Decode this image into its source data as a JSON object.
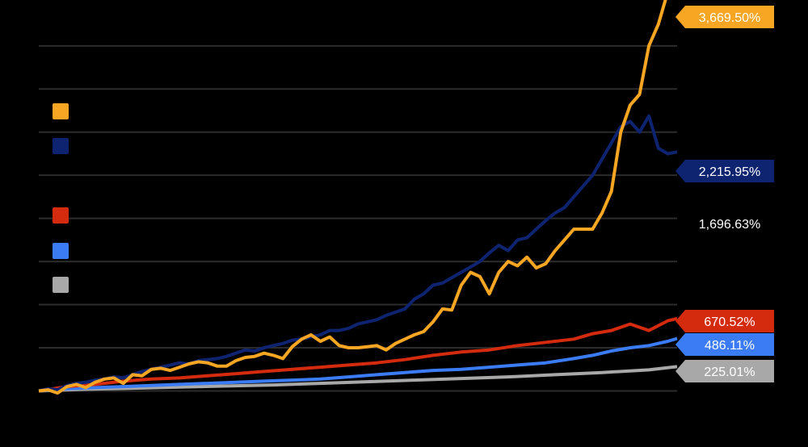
{
  "chart_data": {
    "type": "line",
    "title": "",
    "xlabel": "",
    "ylabel": "",
    "grid": true,
    "legend_position": "left",
    "ylim": [
      -700,
      3700
    ],
    "gridlines": [
      -700,
      0,
      400,
      800,
      1200,
      1600,
      2000,
      2400,
      2800,
      3200
    ],
    "series": [
      {
        "color": "#f6a623",
        "end_label": "3,669.50%",
        "values": [
          [
            0,
            0
          ],
          [
            2,
            10
          ],
          [
            4,
            -20
          ],
          [
            6,
            40
          ],
          [
            8,
            60
          ],
          [
            10,
            30
          ],
          [
            12,
            80
          ],
          [
            14,
            110
          ],
          [
            16,
            120
          ],
          [
            18,
            70
          ],
          [
            20,
            150
          ],
          [
            22,
            140
          ],
          [
            24,
            200
          ],
          [
            26,
            210
          ],
          [
            28,
            190
          ],
          [
            30,
            220
          ],
          [
            32,
            250
          ],
          [
            34,
            270
          ],
          [
            36,
            260
          ],
          [
            38,
            230
          ],
          [
            40,
            230
          ],
          [
            42,
            280
          ],
          [
            44,
            310
          ],
          [
            46,
            320
          ],
          [
            48,
            350
          ],
          [
            50,
            330
          ],
          [
            52,
            300
          ],
          [
            54,
            410
          ],
          [
            56,
            480
          ],
          [
            58,
            520
          ],
          [
            60,
            460
          ],
          [
            62,
            500
          ],
          [
            64,
            420
          ],
          [
            66,
            400
          ],
          [
            68,
            400
          ],
          [
            70,
            410
          ],
          [
            72,
            420
          ],
          [
            74,
            380
          ],
          [
            76,
            440
          ],
          [
            78,
            480
          ],
          [
            80,
            520
          ],
          [
            82,
            550
          ],
          [
            84,
            640
          ],
          [
            86,
            760
          ],
          [
            88,
            750
          ],
          [
            90,
            980
          ],
          [
            92,
            1100
          ],
          [
            94,
            1060
          ],
          [
            96,
            900
          ],
          [
            98,
            1100
          ],
          [
            100,
            1200
          ],
          [
            102,
            1160
          ],
          [
            104,
            1240
          ],
          [
            106,
            1140
          ],
          [
            108,
            1180
          ],
          [
            110,
            1300
          ],
          [
            112,
            1400
          ],
          [
            114,
            1500
          ],
          [
            116,
            1500
          ],
          [
            118,
            1500
          ],
          [
            120,
            1650
          ],
          [
            122,
            1850
          ],
          [
            124,
            2400
          ],
          [
            126,
            2650
          ],
          [
            128,
            2750
          ],
          [
            130,
            3200
          ],
          [
            132,
            3400
          ],
          [
            134,
            3700
          ],
          [
            136,
            3669.5
          ]
        ]
      },
      {
        "color": "#0f2470",
        "end_label": "2,215.95%",
        "values": [
          [
            0,
            0
          ],
          [
            2,
            20
          ],
          [
            4,
            10
          ],
          [
            6,
            50
          ],
          [
            8,
            70
          ],
          [
            10,
            80
          ],
          [
            12,
            100
          ],
          [
            14,
            110
          ],
          [
            16,
            130
          ],
          [
            18,
            120
          ],
          [
            20,
            150
          ],
          [
            22,
            180
          ],
          [
            24,
            200
          ],
          [
            26,
            220
          ],
          [
            28,
            240
          ],
          [
            30,
            260
          ],
          [
            32,
            250
          ],
          [
            34,
            280
          ],
          [
            36,
            290
          ],
          [
            38,
            300
          ],
          [
            40,
            320
          ],
          [
            42,
            350
          ],
          [
            44,
            380
          ],
          [
            46,
            370
          ],
          [
            48,
            400
          ],
          [
            50,
            420
          ],
          [
            52,
            440
          ],
          [
            54,
            470
          ],
          [
            56,
            480
          ],
          [
            58,
            500
          ],
          [
            60,
            520
          ],
          [
            62,
            560
          ],
          [
            64,
            560
          ],
          [
            66,
            580
          ],
          [
            68,
            620
          ],
          [
            70,
            640
          ],
          [
            72,
            660
          ],
          [
            74,
            700
          ],
          [
            76,
            730
          ],
          [
            78,
            760
          ],
          [
            80,
            850
          ],
          [
            82,
            900
          ],
          [
            84,
            980
          ],
          [
            86,
            1000
          ],
          [
            88,
            1050
          ],
          [
            90,
            1100
          ],
          [
            92,
            1150
          ],
          [
            94,
            1200
          ],
          [
            96,
            1280
          ],
          [
            98,
            1350
          ],
          [
            100,
            1300
          ],
          [
            102,
            1400
          ],
          [
            104,
            1420
          ],
          [
            106,
            1500
          ],
          [
            108,
            1580
          ],
          [
            110,
            1650
          ],
          [
            112,
            1700
          ],
          [
            114,
            1800
          ],
          [
            116,
            1900
          ],
          [
            118,
            2000
          ],
          [
            120,
            2150
          ],
          [
            122,
            2300
          ],
          [
            124,
            2450
          ],
          [
            126,
            2500
          ],
          [
            128,
            2400
          ],
          [
            130,
            2550
          ],
          [
            132,
            2250
          ],
          [
            134,
            2200
          ],
          [
            136,
            2215.95
          ]
        ]
      },
      {
        "color": "#d42a0e",
        "end_label": "670.52%",
        "values": [
          [
            0,
            0
          ],
          [
            6,
            40
          ],
          [
            12,
            60
          ],
          [
            18,
            90
          ],
          [
            24,
            110
          ],
          [
            30,
            120
          ],
          [
            36,
            140
          ],
          [
            42,
            160
          ],
          [
            48,
            180
          ],
          [
            54,
            200
          ],
          [
            60,
            220
          ],
          [
            66,
            240
          ],
          [
            72,
            260
          ],
          [
            78,
            290
          ],
          [
            84,
            330
          ],
          [
            90,
            360
          ],
          [
            96,
            380
          ],
          [
            102,
            420
          ],
          [
            108,
            450
          ],
          [
            114,
            480
          ],
          [
            118,
            530
          ],
          [
            122,
            560
          ],
          [
            126,
            620
          ],
          [
            130,
            560
          ],
          [
            134,
            650
          ],
          [
            136,
            670.52
          ]
        ]
      },
      {
        "color": "#3b7cf5",
        "end_label": "486.11%",
        "values": [
          [
            0,
            0
          ],
          [
            6,
            20
          ],
          [
            12,
            30
          ],
          [
            18,
            40
          ],
          [
            24,
            50
          ],
          [
            30,
            60
          ],
          [
            36,
            70
          ],
          [
            42,
            80
          ],
          [
            48,
            90
          ],
          [
            54,
            100
          ],
          [
            60,
            110
          ],
          [
            66,
            130
          ],
          [
            72,
            150
          ],
          [
            78,
            170
          ],
          [
            84,
            190
          ],
          [
            90,
            200
          ],
          [
            96,
            220
          ],
          [
            102,
            240
          ],
          [
            108,
            260
          ],
          [
            114,
            300
          ],
          [
            118,
            330
          ],
          [
            122,
            370
          ],
          [
            126,
            400
          ],
          [
            130,
            420
          ],
          [
            134,
            460
          ],
          [
            136,
            486.11
          ]
        ]
      },
      {
        "color": "#a8a8a8",
        "end_label": "225.01%",
        "values": [
          [
            0,
            0
          ],
          [
            10,
            15
          ],
          [
            20,
            25
          ],
          [
            30,
            35
          ],
          [
            40,
            45
          ],
          [
            50,
            55
          ],
          [
            60,
            70
          ],
          [
            70,
            85
          ],
          [
            80,
            100
          ],
          [
            90,
            115
          ],
          [
            100,
            130
          ],
          [
            110,
            150
          ],
          [
            120,
            170
          ],
          [
            130,
            195
          ],
          [
            136,
            225.01
          ]
        ]
      }
    ],
    "annotations": [
      {
        "text": "1,696.63%",
        "value": 1696.63
      }
    ]
  }
}
